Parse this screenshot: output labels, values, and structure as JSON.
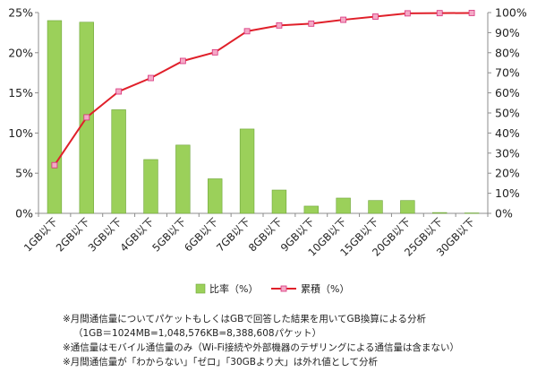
{
  "chart_data": {
    "type": "bar",
    "categories": [
      "1GB以下",
      "2GB以下",
      "3GB以下",
      "4GB以下",
      "5GB以下",
      "6GB以下",
      "7GB以下",
      "8GB以下",
      "9GB以下",
      "10GB以下",
      "15GB以下",
      "20GB以下",
      "25GB以下",
      "30GB以下"
    ],
    "series": [
      {
        "name": "比率（%）",
        "type": "bar",
        "axis": "left",
        "values": [
          24.0,
          23.8,
          12.9,
          6.7,
          8.5,
          4.3,
          10.5,
          2.9,
          0.9,
          1.9,
          1.6,
          1.6,
          0.1,
          0.05
        ]
      },
      {
        "name": "累積（%）",
        "type": "line",
        "axis": "right",
        "values": [
          24.0,
          47.8,
          60.7,
          67.4,
          75.9,
          80.2,
          90.7,
          93.6,
          94.5,
          96.4,
          98.0,
          99.6,
          99.7,
          99.8
        ]
      }
    ],
    "y_left": {
      "ticks": [
        "0%",
        "5%",
        "10%",
        "15%",
        "20%",
        "25%"
      ],
      "lim": [
        0,
        25
      ]
    },
    "y_right": {
      "ticks": [
        "0%",
        "10%",
        "20%",
        "30%",
        "40%",
        "50%",
        "60%",
        "70%",
        "80%",
        "90%",
        "100%"
      ],
      "lim": [
        0,
        100
      ]
    },
    "grid": false,
    "legend": "bottom-center",
    "colors": {
      "bar_fill": "#9bd05a",
      "bar_stroke": "#6fa53a",
      "line": "#e0202a",
      "marker_fill": "#f4a9c6",
      "marker_stroke": "#d8307a"
    }
  },
  "notes": [
    "※月間通信量についてパケットもしくはGBで回答した結果を用いてGB換算による分析",
    "（1GB＝1024MB=1,048,576KB=8,388,608パケット）",
    "※通信量はモバイル通信量のみ（Wi-Fi接続や外部機器のテザリングによる通信量は含まない）",
    "※月間通信量が「わからない」「ゼロ」「30GBより大」は外れ値として分析"
  ]
}
